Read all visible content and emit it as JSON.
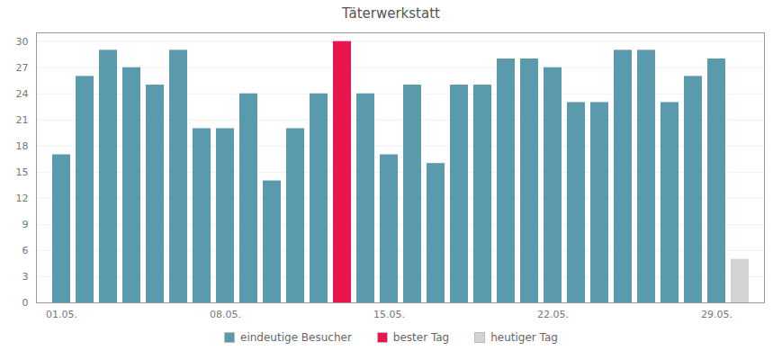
{
  "chart_data": {
    "type": "bar",
    "title": "Täterwerkstatt",
    "categories": [
      "01.05.",
      null,
      null,
      null,
      null,
      null,
      null,
      "08.05.",
      null,
      null,
      null,
      null,
      null,
      null,
      "15.05.",
      null,
      null,
      null,
      null,
      null,
      null,
      "22.05.",
      null,
      null,
      null,
      null,
      null,
      null,
      "29.05.",
      null
    ],
    "series": [
      {
        "name": "eindeutige Besucher",
        "color": "#5b9aad",
        "values": [
          17,
          26,
          29,
          27,
          25,
          29,
          20,
          20,
          24,
          14,
          20,
          24,
          null,
          24,
          17,
          25,
          16,
          25,
          25,
          28,
          28,
          27,
          23,
          23,
          29,
          29,
          23,
          26,
          28,
          null
        ]
      },
      {
        "name": "bester Tag",
        "color": "#e8154f",
        "values": [
          null,
          null,
          null,
          null,
          null,
          null,
          null,
          null,
          null,
          null,
          null,
          null,
          30,
          null,
          null,
          null,
          null,
          null,
          null,
          null,
          null,
          null,
          null,
          null,
          null,
          null,
          null,
          null,
          null,
          null
        ]
      },
      {
        "name": "heutiger Tag",
        "color": "#d3d3d3",
        "values": [
          null,
          null,
          null,
          null,
          null,
          null,
          null,
          null,
          null,
          null,
          null,
          null,
          null,
          null,
          null,
          null,
          null,
          null,
          null,
          null,
          null,
          null,
          null,
          null,
          null,
          null,
          null,
          null,
          null,
          5
        ]
      }
    ],
    "ylim": [
      0,
      31
    ],
    "yticks": [
      0,
      3,
      6,
      9,
      12,
      15,
      18,
      21,
      24,
      27,
      30
    ],
    "grid": true,
    "legend": "bottom"
  }
}
